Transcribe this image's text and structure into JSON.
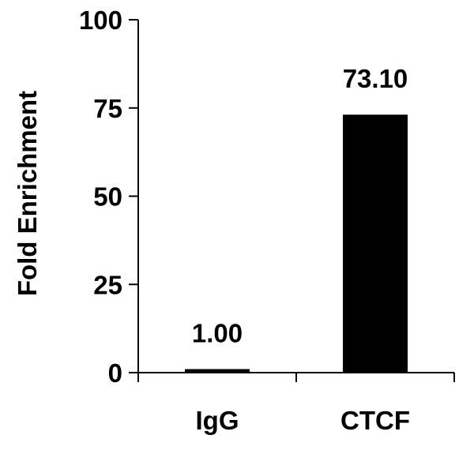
{
  "chart_data": {
    "type": "bar",
    "categories": [
      "IgG",
      "CTCF"
    ],
    "values": [
      1.0,
      73.1
    ],
    "data_labels": [
      "1.00",
      "73.10"
    ],
    "title": "",
    "xlabel": "",
    "ylabel": "Fold Enrichment",
    "ylim": [
      0,
      100
    ],
    "yticks": [
      0,
      25,
      50,
      75,
      100
    ],
    "ytick_labels": [
      "0",
      "25",
      "50",
      "75",
      "100"
    ],
    "grid": false,
    "legend": "none",
    "bar_color": "#000000",
    "axis_color": "#000000",
    "background_color": "#ffffff"
  }
}
